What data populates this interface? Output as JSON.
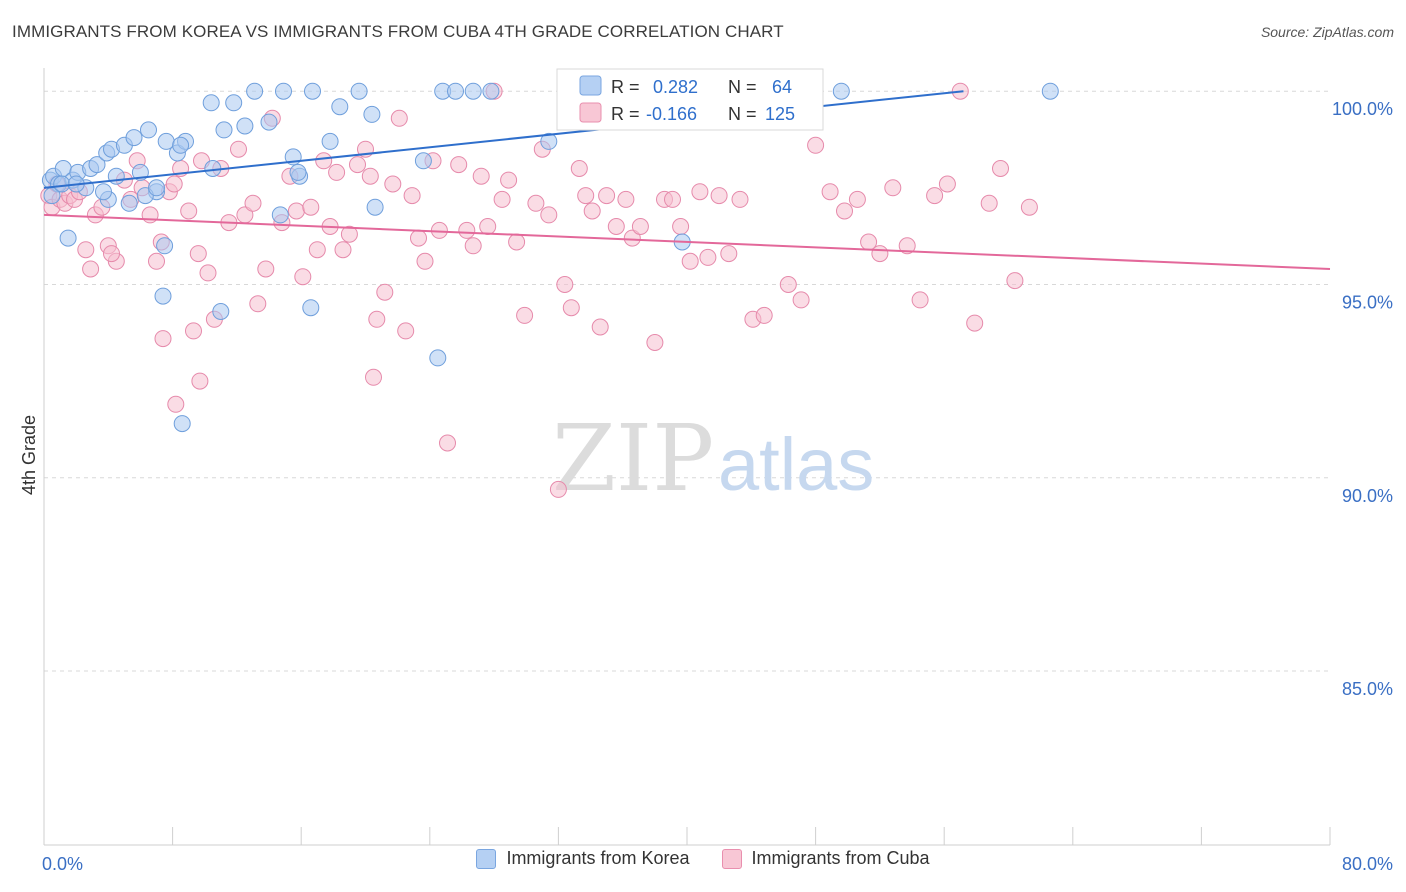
{
  "title": "IMMIGRANTS FROM KOREA VS IMMIGRANTS FROM CUBA 4TH GRADE CORRELATION CHART",
  "source": "Source: ZipAtlas.com",
  "watermark": {
    "zip": "ZIP",
    "atlas": "atlas"
  },
  "stats": {
    "korea": {
      "r_label": "R =",
      "r_value": "0.282",
      "n_label": "N =",
      "n_value": "64"
    },
    "cuba": {
      "r_label": "R =",
      "r_value": "-0.166",
      "n_label": "N =",
      "n_value": "125"
    }
  },
  "legend": {
    "korea": "Immigrants from Korea",
    "cuba": "Immigrants from Cuba"
  },
  "colors": {
    "korea_fill": "#a9c8f0",
    "korea_stroke": "#6f9fdc",
    "korea_line": "#2f6fcc",
    "cuba_fill": "#f6bfd0",
    "cuba_stroke": "#e68aab",
    "cuba_line": "#e3689a",
    "tick_label": "#3a6fc4",
    "grid": "#d8d8d8"
  },
  "chart_data": {
    "type": "scatter",
    "title": "IMMIGRANTS FROM KOREA VS IMMIGRANTS FROM CUBA 4TH GRADE CORRELATION CHART",
    "xlabel": "",
    "ylabel": "4th Grade",
    "xlim": [
      0,
      80
    ],
    "ylim": [
      80.5,
      100.6
    ],
    "x_tick_labels": [
      "0.0%",
      "80.0%"
    ],
    "y_ticks": [
      85,
      90,
      95,
      100
    ],
    "y_tick_labels": [
      "85.0%",
      "90.0%",
      "95.0%",
      "100.0%"
    ],
    "grid": true,
    "legend_position": "bottom",
    "series": [
      {
        "name": "Immigrants from Korea",
        "trend": {
          "x": [
            0,
            57.2
          ],
          "y": [
            97.5,
            100.0
          ]
        },
        "points": [
          [
            0.4,
            97.7
          ],
          [
            0.6,
            97.8
          ],
          [
            0.9,
            97.6
          ],
          [
            1.2,
            98.0
          ],
          [
            1.5,
            96.2
          ],
          [
            1.8,
            97.7
          ],
          [
            2.1,
            97.9
          ],
          [
            2.6,
            97.5
          ],
          [
            2.9,
            98.0
          ],
          [
            3.3,
            98.1
          ],
          [
            3.9,
            98.4
          ],
          [
            4.2,
            98.5
          ],
          [
            4.5,
            97.8
          ],
          [
            5.0,
            98.6
          ],
          [
            5.6,
            98.8
          ],
          [
            6.0,
            97.9
          ],
          [
            6.5,
            99.0
          ],
          [
            7.0,
            97.4
          ],
          [
            7.6,
            98.7
          ],
          [
            8.3,
            98.4
          ],
          [
            8.8,
            98.7
          ],
          [
            10.5,
            98.0
          ],
          [
            10.4,
            99.7
          ],
          [
            11.2,
            99.0
          ],
          [
            11.8,
            99.7
          ],
          [
            12.5,
            99.1
          ],
          [
            13.1,
            100.0
          ],
          [
            14.0,
            99.2
          ],
          [
            14.9,
            100.0
          ],
          [
            15.5,
            98.3
          ],
          [
            16.7,
            100.0
          ],
          [
            17.8,
            98.7
          ],
          [
            18.4,
            99.6
          ],
          [
            19.6,
            100.0
          ],
          [
            20.4,
            99.4
          ],
          [
            24.8,
            100.0
          ],
          [
            25.6,
            100.0
          ],
          [
            26.7,
            100.0
          ],
          [
            27.8,
            100.0
          ],
          [
            31.4,
            98.7
          ],
          [
            38.1,
            100.0
          ],
          [
            49.6,
            100.0
          ],
          [
            62.6,
            100.0
          ],
          [
            0.5,
            97.3
          ],
          [
            1.1,
            97.6
          ],
          [
            2.0,
            97.6
          ],
          [
            4.0,
            97.2
          ],
          [
            5.3,
            97.1
          ],
          [
            6.3,
            97.3
          ],
          [
            8.5,
            98.6
          ],
          [
            11.0,
            94.3
          ],
          [
            14.7,
            96.8
          ],
          [
            15.9,
            97.8
          ],
          [
            16.6,
            94.4
          ],
          [
            20.6,
            97.0
          ],
          [
            24.5,
            93.1
          ],
          [
            7.5,
            96.0
          ],
          [
            7.4,
            94.7
          ],
          [
            8.6,
            91.4
          ],
          [
            23.6,
            98.2
          ],
          [
            39.7,
            96.1
          ],
          [
            15.8,
            97.9
          ],
          [
            3.7,
            97.4
          ],
          [
            7.0,
            97.5
          ]
        ]
      },
      {
        "name": "Immigrants from Cuba",
        "trend": {
          "x": [
            0,
            80
          ],
          "y": [
            96.8,
            95.4
          ]
        },
        "points": [
          [
            0.3,
            97.3
          ],
          [
            0.5,
            97.0
          ],
          [
            0.8,
            97.6
          ],
          [
            1.0,
            97.2
          ],
          [
            1.3,
            97.1
          ],
          [
            1.6,
            97.3
          ],
          [
            1.9,
            97.2
          ],
          [
            2.2,
            97.4
          ],
          [
            2.6,
            95.9
          ],
          [
            2.9,
            95.4
          ],
          [
            3.2,
            96.8
          ],
          [
            3.6,
            97.0
          ],
          [
            4.0,
            96.0
          ],
          [
            4.5,
            95.6
          ],
          [
            5.0,
            97.7
          ],
          [
            5.4,
            97.2
          ],
          [
            5.8,
            98.2
          ],
          [
            6.1,
            97.5
          ],
          [
            6.6,
            96.8
          ],
          [
            7.0,
            95.6
          ],
          [
            7.3,
            96.1
          ],
          [
            7.8,
            97.4
          ],
          [
            8.1,
            97.6
          ],
          [
            8.5,
            98.0
          ],
          [
            9.0,
            96.9
          ],
          [
            9.3,
            93.8
          ],
          [
            9.6,
            95.8
          ],
          [
            9.8,
            98.2
          ],
          [
            10.2,
            95.3
          ],
          [
            10.6,
            94.1
          ],
          [
            11.0,
            98.0
          ],
          [
            11.5,
            96.6
          ],
          [
            12.1,
            98.5
          ],
          [
            12.5,
            96.8
          ],
          [
            13.0,
            97.1
          ],
          [
            13.3,
            94.5
          ],
          [
            13.8,
            95.4
          ],
          [
            14.2,
            99.3
          ],
          [
            14.8,
            96.6
          ],
          [
            15.3,
            97.8
          ],
          [
            15.7,
            96.9
          ],
          [
            16.1,
            95.2
          ],
          [
            16.6,
            97.0
          ],
          [
            17.0,
            95.9
          ],
          [
            17.4,
            98.2
          ],
          [
            17.8,
            96.5
          ],
          [
            18.2,
            97.9
          ],
          [
            18.6,
            95.9
          ],
          [
            19.0,
            96.3
          ],
          [
            19.5,
            98.1
          ],
          [
            20.0,
            98.5
          ],
          [
            20.3,
            97.8
          ],
          [
            20.7,
            94.1
          ],
          [
            21.2,
            94.8
          ],
          [
            21.7,
            97.6
          ],
          [
            22.1,
            99.3
          ],
          [
            22.5,
            93.8
          ],
          [
            22.9,
            97.3
          ],
          [
            23.3,
            96.2
          ],
          [
            23.7,
            95.6
          ],
          [
            24.2,
            98.2
          ],
          [
            24.6,
            96.4
          ],
          [
            25.1,
            90.9
          ],
          [
            25.8,
            98.1
          ],
          [
            26.3,
            96.4
          ],
          [
            26.7,
            96.0
          ],
          [
            27.2,
            97.8
          ],
          [
            27.6,
            96.5
          ],
          [
            28.0,
            100.0
          ],
          [
            28.5,
            97.2
          ],
          [
            28.9,
            97.7
          ],
          [
            29.4,
            96.1
          ],
          [
            29.9,
            94.2
          ],
          [
            30.6,
            97.1
          ],
          [
            31.0,
            98.5
          ],
          [
            31.4,
            96.8
          ],
          [
            32.0,
            89.7
          ],
          [
            32.4,
            95.0
          ],
          [
            32.8,
            94.4
          ],
          [
            33.3,
            98.0
          ],
          [
            33.7,
            97.3
          ],
          [
            34.1,
            96.9
          ],
          [
            34.6,
            93.9
          ],
          [
            35.0,
            97.3
          ],
          [
            35.6,
            96.5
          ],
          [
            36.2,
            97.2
          ],
          [
            36.6,
            96.2
          ],
          [
            37.1,
            96.5
          ],
          [
            38.0,
            93.5
          ],
          [
            38.6,
            97.2
          ],
          [
            39.1,
            97.2
          ],
          [
            39.6,
            96.5
          ],
          [
            40.2,
            95.6
          ],
          [
            40.8,
            97.4
          ],
          [
            41.3,
            95.7
          ],
          [
            42.0,
            97.3
          ],
          [
            42.6,
            95.8
          ],
          [
            43.3,
            97.2
          ],
          [
            44.1,
            94.1
          ],
          [
            44.8,
            94.2
          ],
          [
            45.6,
            99.3
          ],
          [
            46.3,
            95.0
          ],
          [
            47.1,
            94.6
          ],
          [
            48.0,
            98.6
          ],
          [
            48.9,
            97.4
          ],
          [
            49.8,
            96.9
          ],
          [
            50.6,
            97.2
          ],
          [
            51.3,
            96.1
          ],
          [
            52.0,
            95.8
          ],
          [
            52.8,
            97.5
          ],
          [
            53.7,
            96.0
          ],
          [
            54.5,
            94.6
          ],
          [
            55.4,
            97.3
          ],
          [
            56.2,
            97.6
          ],
          [
            57.0,
            100.0
          ],
          [
            57.9,
            94.0
          ],
          [
            58.8,
            97.1
          ],
          [
            59.5,
            98.0
          ],
          [
            60.4,
            95.1
          ],
          [
            61.3,
            97.0
          ],
          [
            4.2,
            95.8
          ],
          [
            7.4,
            93.6
          ],
          [
            8.2,
            91.9
          ],
          [
            9.7,
            92.5
          ],
          [
            20.5,
            92.6
          ]
        ]
      }
    ]
  }
}
